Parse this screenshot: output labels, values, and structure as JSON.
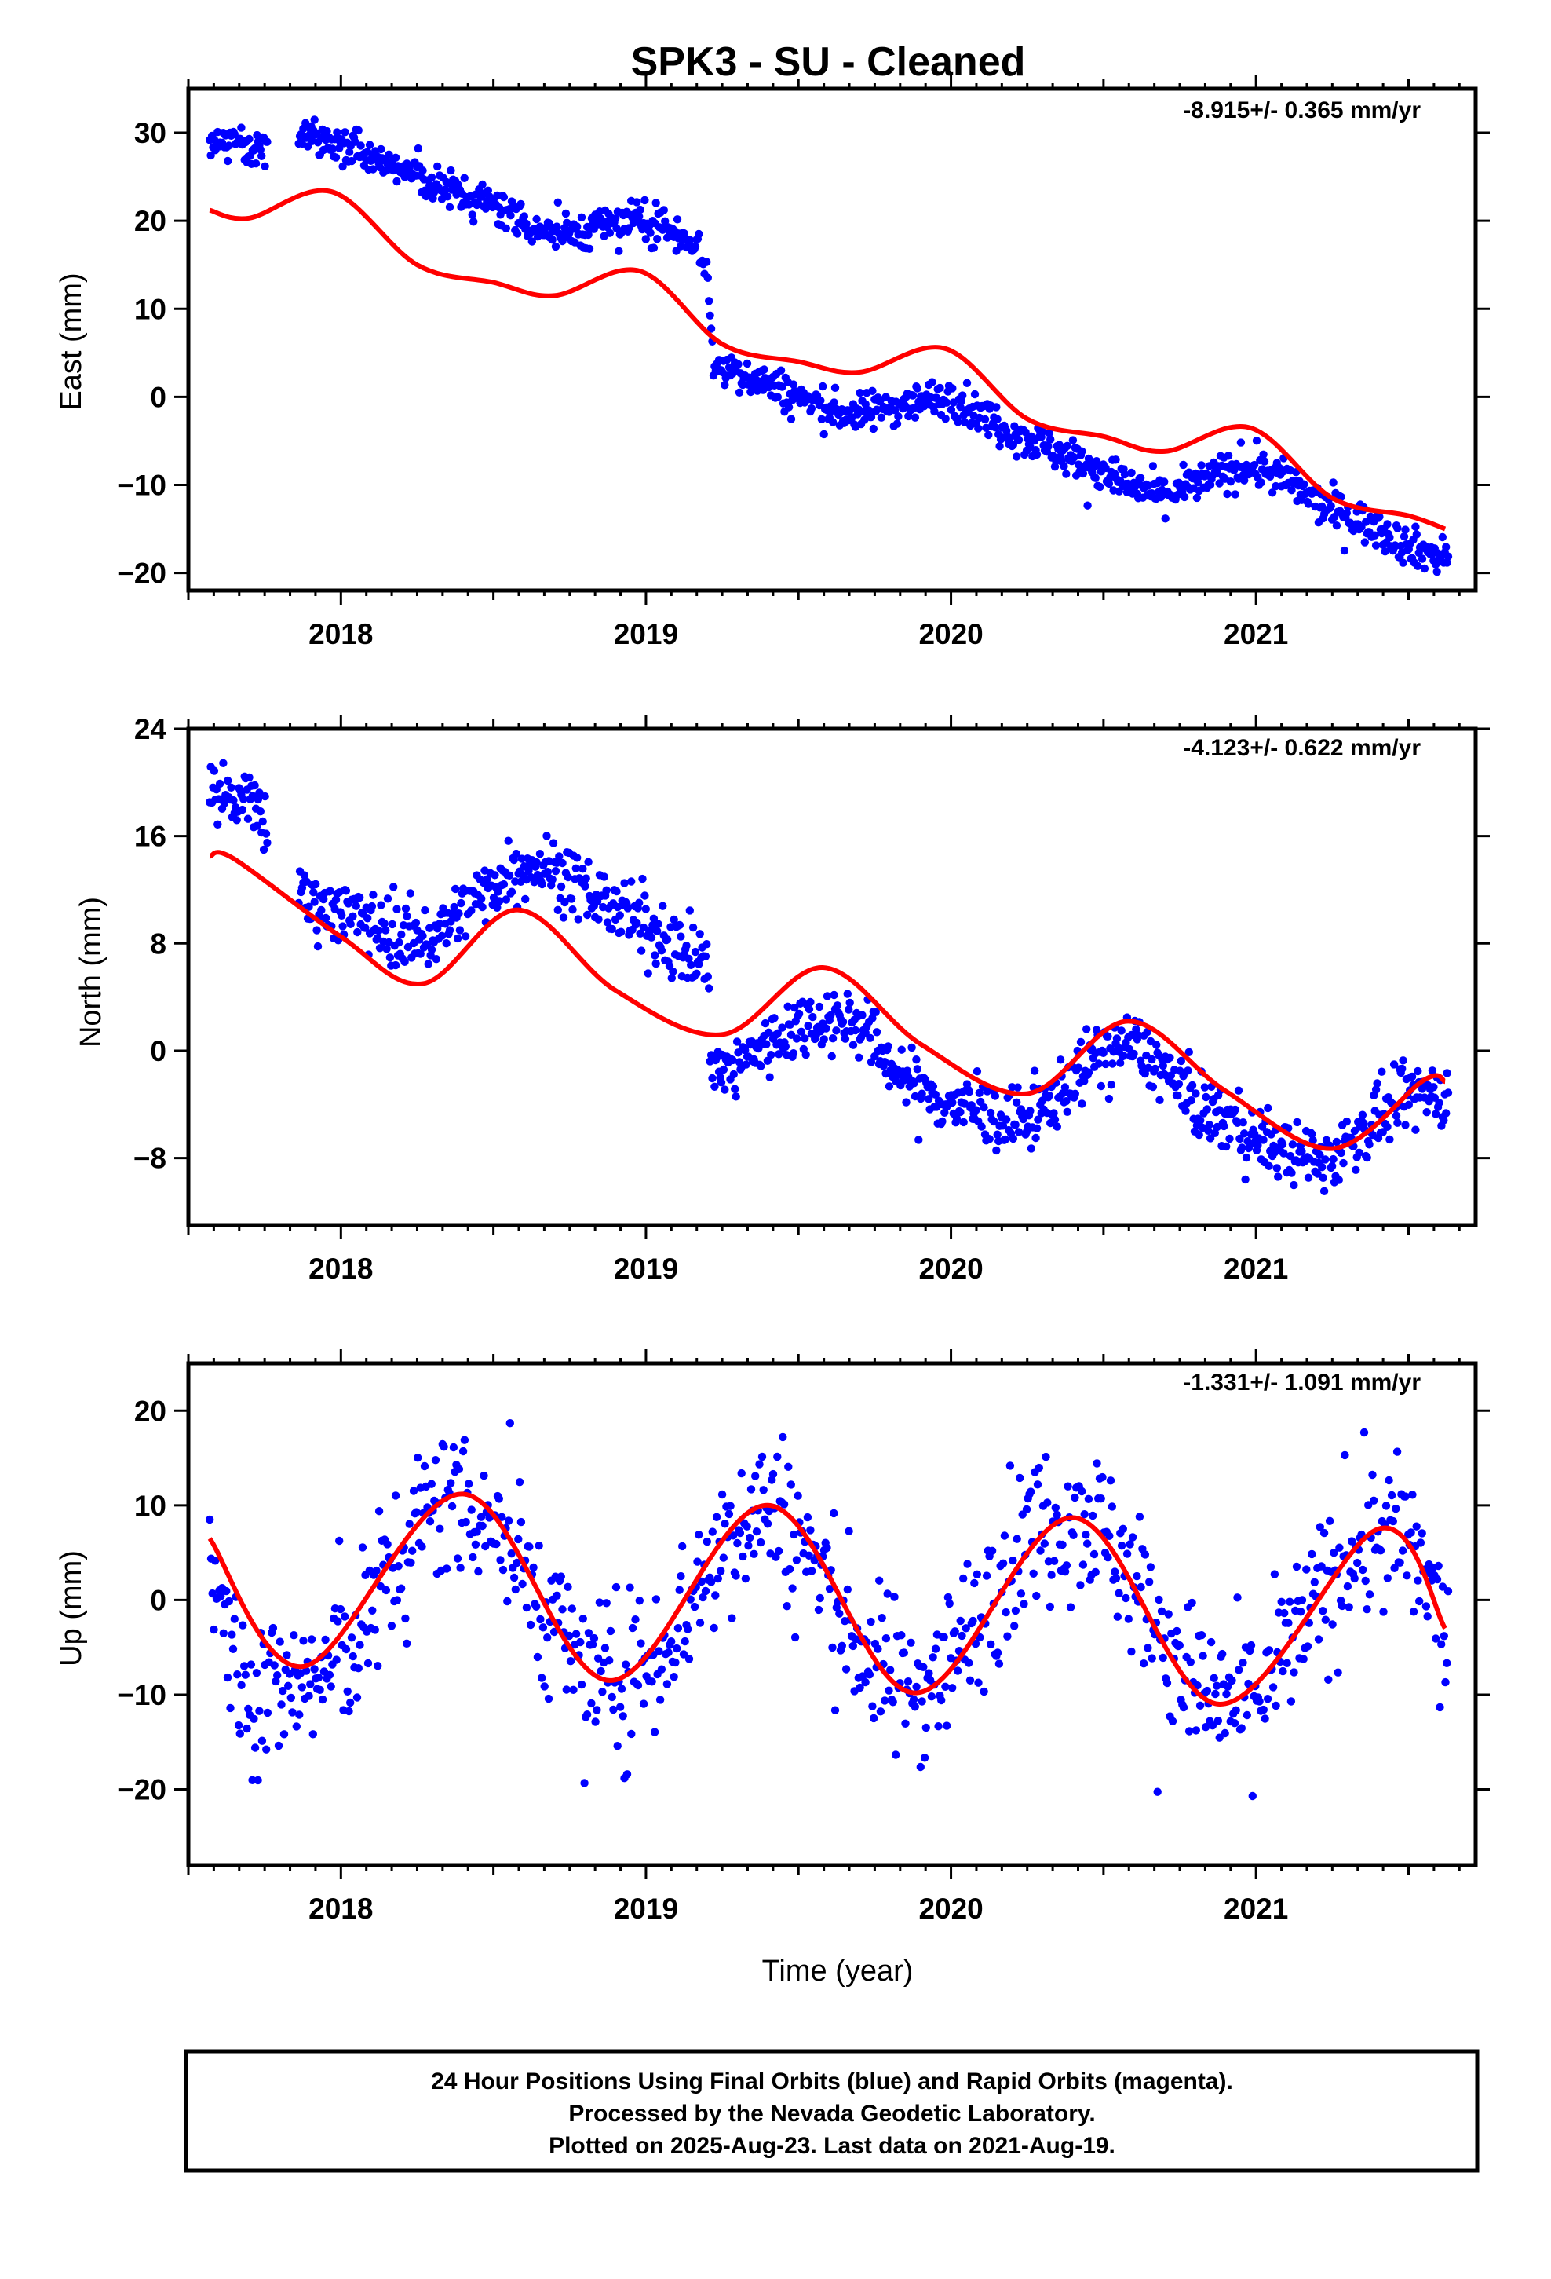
{
  "title": "SPK3  - SU - Cleaned",
  "xlabel": "Time (year)",
  "footer": {
    "line1": "24 Hour Positions Using Final Orbits (blue) and Rapid Orbits (magenta).",
    "line2": "Processed by the Nevada Geodetic Laboratory.",
    "line3": "Plotted on 2025-Aug-23. Last data on 2021-Aug-19."
  },
  "colors": {
    "data": "#0000ff",
    "model": "#ff0000",
    "frame": "#000000"
  },
  "chart_data": [
    {
      "type": "scatter",
      "ylabel": "East (mm)",
      "rate": "-8.915+/- 0.365 mm/yr",
      "xlim": [
        2017.5,
        2021.72
      ],
      "ylim": [
        -22,
        35
      ],
      "xticks": [
        "2018",
        "2019",
        "2020",
        "2021"
      ],
      "yticks": [
        "30",
        "20",
        "10",
        "0",
        "−10",
        "−20"
      ],
      "series": [
        {
          "kind": "points",
          "approx_x": [
            2017.57,
            2017.62,
            2017.67,
            2017.72,
            2017.87,
            2017.95,
            2018.05,
            2018.15,
            2018.25,
            2018.35,
            2018.45,
            2018.55,
            2018.65,
            2018.75,
            2018.85,
            2018.95,
            2019.05,
            2019.15,
            2019.2,
            2019.22,
            2019.3,
            2019.4,
            2019.5,
            2019.6,
            2019.7,
            2019.8,
            2019.9,
            2020.0,
            2020.1,
            2020.2,
            2020.3,
            2020.4,
            2020.5,
            2020.6,
            2020.7,
            2020.8,
            2020.9,
            2021.0,
            2021.1,
            2021.2,
            2021.3,
            2021.4,
            2021.5,
            2021.6
          ],
          "approx_y": [
            28.5,
            29.0,
            28.5,
            28.0,
            29.5,
            29.0,
            28.0,
            26.5,
            25.0,
            23.5,
            22.5,
            21.0,
            19.0,
            18.5,
            19.5,
            20.0,
            19.5,
            18.0,
            15.0,
            3.5,
            3.0,
            1.5,
            0.0,
            -1.5,
            -2.0,
            -1.0,
            -0.5,
            0.0,
            -2.0,
            -4.0,
            -5.5,
            -7.0,
            -8.5,
            -10.5,
            -11.0,
            -10.0,
            -8.5,
            -8.0,
            -9.5,
            -12.0,
            -13.5,
            -15.0,
            -17.0,
            -18.0
          ]
        },
        {
          "kind": "model",
          "x": [
            2017.57,
            2017.7,
            2017.97,
            2018.25,
            2018.5,
            2018.7,
            2018.98,
            2019.25,
            2019.5,
            2019.7,
            2019.98,
            2020.25,
            2020.5,
            2020.7,
            2020.98,
            2021.25,
            2021.5,
            2021.62
          ],
          "y": [
            21.2,
            20.3,
            23.3,
            15.0,
            13.0,
            11.5,
            14.3,
            6.0,
            4.0,
            2.8,
            5.5,
            -2.5,
            -4.5,
            -6.2,
            -3.5,
            -11.5,
            -13.5,
            -15.0
          ]
        }
      ]
    },
    {
      "type": "scatter",
      "ylabel": "North (mm)",
      "rate": "-4.123+/- 0.622 mm/yr",
      "xlim": [
        2017.5,
        2021.72
      ],
      "ylim": [
        -13,
        24
      ],
      "xticks": [
        "2018",
        "2019",
        "2020",
        "2021"
      ],
      "yticks": [
        "24",
        "16",
        "8",
        "0",
        "−8"
      ],
      "series": [
        {
          "kind": "points",
          "approx_x": [
            2017.57,
            2017.62,
            2017.67,
            2017.72,
            2017.9,
            2018.0,
            2018.1,
            2018.2,
            2018.3,
            2018.4,
            2018.5,
            2018.6,
            2018.7,
            2018.8,
            2018.9,
            2019.0,
            2019.1,
            2019.2,
            2019.22,
            2019.3,
            2019.4,
            2019.5,
            2019.6,
            2019.7,
            2019.8,
            2019.9,
            2020.0,
            2020.1,
            2020.2,
            2020.3,
            2020.4,
            2020.5,
            2020.6,
            2020.7,
            2020.8,
            2020.9,
            2021.0,
            2021.1,
            2021.2,
            2021.3,
            2021.4,
            2021.5,
            2021.6
          ],
          "approx_y": [
            19.5,
            19.0,
            18.5,
            18.0,
            11.0,
            10.5,
            9.5,
            8.5,
            8.5,
            10.5,
            12.5,
            14.0,
            13.5,
            12.0,
            10.5,
            9.0,
            8.0,
            6.5,
            -2.0,
            -1.0,
            0.5,
            2.0,
            2.5,
            2.0,
            -1.0,
            -3.0,
            -4.0,
            -4.5,
            -5.5,
            -4.5,
            -2.0,
            0.0,
            0.5,
            -1.5,
            -4.0,
            -5.0,
            -6.5,
            -7.5,
            -8.5,
            -7.0,
            -5.0,
            -3.5,
            -3.0
          ]
        },
        {
          "kind": "model",
          "x": [
            2017.57,
            2017.65,
            2018.0,
            2018.27,
            2018.58,
            2018.9,
            2019.25,
            2019.58,
            2019.9,
            2020.25,
            2020.58,
            2020.9,
            2021.25,
            2021.55,
            2021.62
          ],
          "y": [
            14.5,
            14.3,
            8.5,
            5.0,
            10.5,
            4.5,
            1.2,
            6.2,
            0.5,
            -3.2,
            2.2,
            -3.0,
            -7.3,
            -2.2,
            -2.3
          ]
        }
      ]
    },
    {
      "type": "scatter",
      "ylabel": "Up (mm)",
      "rate": "-1.331+/- 1.091 mm/yr",
      "xlim": [
        2017.5,
        2021.72
      ],
      "ylim": [
        -28,
        25
      ],
      "xticks": [
        "2018",
        "2019",
        "2020",
        "2021"
      ],
      "yticks": [
        "20",
        "10",
        "0",
        "−10",
        "−20"
      ],
      "series": [
        {
          "kind": "points",
          "approx_x": [
            2017.57,
            2017.62,
            2017.67,
            2017.72,
            2017.95,
            2018.05,
            2018.15,
            2018.25,
            2018.35,
            2018.45,
            2018.55,
            2018.65,
            2018.75,
            2018.85,
            2018.95,
            2019.05,
            2019.15,
            2019.25,
            2019.35,
            2019.45,
            2019.55,
            2019.65,
            2019.75,
            2019.85,
            2019.95,
            2020.05,
            2020.15,
            2020.25,
            2020.35,
            2020.45,
            2020.55,
            2020.65,
            2020.75,
            2020.85,
            2020.95,
            2021.05,
            2021.15,
            2021.25,
            2021.35,
            2021.45,
            2021.55,
            2021.6
          ],
          "approx_y": [
            3.0,
            -2.0,
            -8.0,
            -10.0,
            -8.0,
            -4.0,
            2.0,
            8.0,
            11.0,
            10.0,
            6.0,
            0.0,
            -5.0,
            -9.0,
            -8.0,
            -5.0,
            0.0,
            6.0,
            10.0,
            9.0,
            4.0,
            -2.0,
            -7.0,
            -9.0,
            -8.0,
            -4.0,
            2.0,
            7.0,
            9.0,
            9.0,
            5.0,
            -1.0,
            -7.0,
            -11.0,
            -11.0,
            -8.0,
            -3.0,
            2.0,
            6.0,
            7.0,
            3.0,
            -3.0
          ]
        },
        {
          "kind": "model",
          "x": [
            2017.57,
            2017.88,
            2018.4,
            2018.88,
            2019.4,
            2019.88,
            2020.4,
            2020.88,
            2021.4,
            2021.62
          ],
          "y": [
            6.5,
            -7.0,
            11.2,
            -8.5,
            10.0,
            -9.8,
            8.7,
            -11.0,
            7.5,
            -3.0
          ]
        }
      ]
    }
  ]
}
